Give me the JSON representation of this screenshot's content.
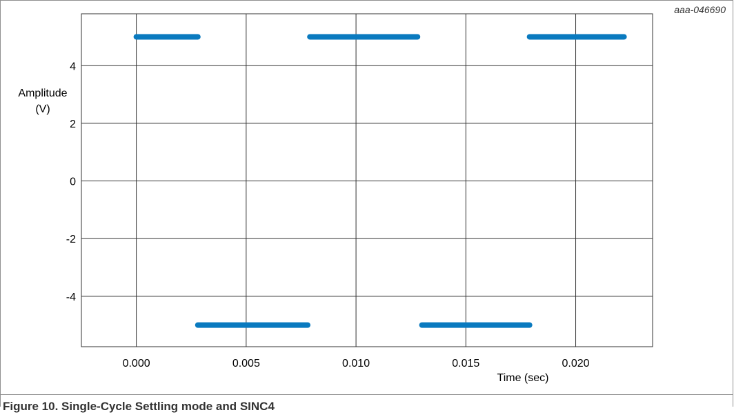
{
  "figure": {
    "reference_id": "aaa-046690",
    "caption": "Figure 10.  Single-Cycle Settling mode and SINC4"
  },
  "chart_data": {
    "type": "line",
    "title": "",
    "xlabel": "Time (sec)",
    "ylabel": [
      "Amplitude",
      "(V)"
    ],
    "xlim": [
      -0.0025,
      0.0235
    ],
    "ylim": [
      -5.75,
      5.8
    ],
    "xticks": [
      0.0,
      0.005,
      0.01,
      0.015,
      0.02
    ],
    "xtick_labels": [
      "0.000",
      "0.005",
      "0.010",
      "0.015",
      "0.020"
    ],
    "yticks": [
      4,
      2,
      0,
      -2,
      -4
    ],
    "ytick_labels": [
      "4",
      "2",
      "0",
      "-2",
      "-4"
    ],
    "grid": true,
    "series": [
      {
        "color": "#0a7abf",
        "segments": [
          {
            "x": [
              0.0,
              0.0028
            ],
            "y": [
              5,
              5
            ]
          },
          {
            "x": [
              0.0028,
              0.0078
            ],
            "y": [
              -5,
              -5
            ]
          },
          {
            "x": [
              0.0079,
              0.0128
            ],
            "y": [
              5,
              5
            ]
          },
          {
            "x": [
              0.013,
              0.0179
            ],
            "y": [
              -5,
              -5
            ]
          },
          {
            "x": [
              0.0179,
              0.0222
            ],
            "y": [
              5,
              5
            ]
          }
        ]
      }
    ]
  }
}
